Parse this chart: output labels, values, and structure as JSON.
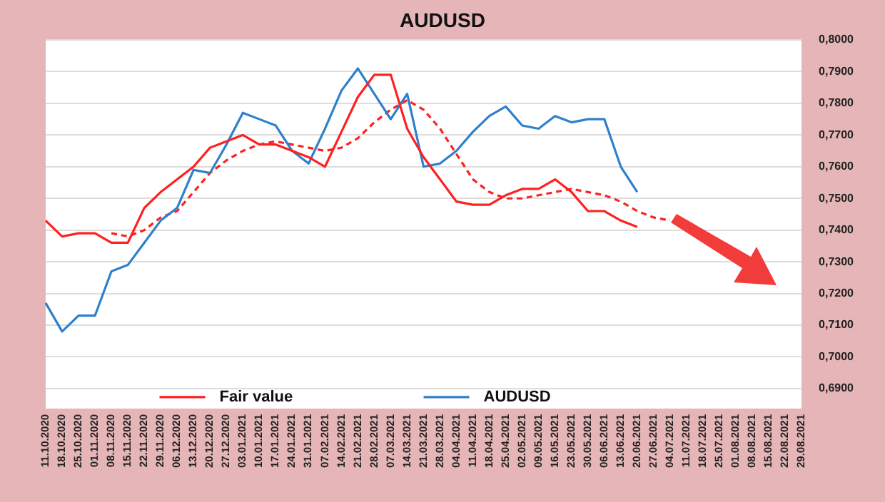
{
  "chart_data": {
    "type": "line",
    "title": "AUDUSD",
    "categories": [
      "11.10.2020",
      "18.10.2020",
      "25.10.2020",
      "01.11.2020",
      "08.11.2020",
      "15.11.2020",
      "22.11.2020",
      "29.11.2020",
      "06.12.2020",
      "13.12.2020",
      "20.12.2020",
      "27.12.2020",
      "03.01.2021",
      "10.01.2021",
      "17.01.2021",
      "24.01.2021",
      "31.01.2021",
      "07.02.2021",
      "14.02.2021",
      "21.02.2021",
      "28.02.2021",
      "07.03.2021",
      "14.03.2021",
      "21.03.2021",
      "28.03.2021",
      "04.04.2021",
      "11.04.2021",
      "18.04.2021",
      "25.04.2021",
      "02.05.2021",
      "09.05.2021",
      "16.05.2021",
      "23.05.2021",
      "30.05.2021",
      "06.06.2021",
      "13.06.2021",
      "20.06.2021",
      "27.06.2021",
      "04.07.2021",
      "11.07.2021",
      "18.07.2021",
      "25.07.2021",
      "01.08.2021",
      "08.08.2021",
      "15.08.2021",
      "22.08.2021",
      "29.08.2021"
    ],
    "series": [
      {
        "name": "Fair value",
        "color": "#ff2020",
        "line_style": "solid",
        "values": [
          0.743,
          0.738,
          0.739,
          0.739,
          0.736,
          0.736,
          0.747,
          0.752,
          0.756,
          0.76,
          0.766,
          0.768,
          0.77,
          0.767,
          0.767,
          0.765,
          0.763,
          0.76,
          0.771,
          0.782,
          0.789,
          0.789,
          0.772,
          0.763,
          0.756,
          0.749,
          0.748,
          0.748,
          0.751,
          0.753,
          0.753,
          0.756,
          0.752,
          0.746,
          0.746,
          0.743,
          0.741,
          null,
          null,
          null,
          null,
          null,
          null,
          null,
          null,
          null,
          null
        ]
      },
      {
        "name": "AUDUSD",
        "color": "#2f80cc",
        "line_style": "solid",
        "values": [
          0.717,
          0.708,
          0.713,
          0.713,
          0.727,
          0.729,
          0.736,
          0.743,
          0.747,
          0.759,
          0.758,
          0.767,
          0.777,
          0.775,
          0.773,
          0.765,
          0.761,
          0.772,
          0.784,
          0.791,
          0.783,
          0.775,
          0.783,
          0.76,
          0.761,
          0.765,
          0.771,
          0.776,
          0.779,
          0.773,
          0.772,
          0.776,
          0.774,
          0.775,
          0.775,
          0.76,
          0.752,
          null,
          null,
          null,
          null,
          null,
          null,
          null,
          null,
          null,
          null
        ]
      },
      {
        "color": "#ff2020",
        "line_style": "dashed",
        "values": [
          null,
          null,
          null,
          null,
          0.739,
          0.738,
          0.74,
          0.744,
          0.746,
          0.752,
          0.758,
          0.762,
          0.765,
          0.767,
          0.768,
          0.767,
          0.766,
          0.765,
          0.766,
          0.769,
          0.774,
          0.778,
          0.781,
          0.778,
          0.772,
          0.764,
          0.756,
          0.752,
          0.75,
          0.75,
          0.751,
          0.752,
          0.753,
          0.752,
          0.751,
          0.749,
          0.746,
          0.744,
          0.743,
          null,
          null,
          null,
          null,
          null,
          null,
          null,
          null
        ]
      }
    ],
    "ylim": [
      0.69,
      0.8
    ],
    "yticks": [
      {
        "value": 0.69,
        "label": "0,6900"
      },
      {
        "value": 0.7,
        "label": "0,7000"
      },
      {
        "value": 0.71,
        "label": "0,7100"
      },
      {
        "value": 0.72,
        "label": "0,7200"
      },
      {
        "value": 0.73,
        "label": "0,7300"
      },
      {
        "value": 0.74,
        "label": "0,7400"
      },
      {
        "value": 0.75,
        "label": "0,7500"
      },
      {
        "value": 0.76,
        "label": "0,7600"
      },
      {
        "value": 0.77,
        "label": "0,7700"
      },
      {
        "value": 0.78,
        "label": "0,7800"
      },
      {
        "value": 0.79,
        "label": "0,7900"
      },
      {
        "value": 0.8,
        "label": "0,8000"
      }
    ],
    "grid": "y",
    "legend": "bottom",
    "marker": "none"
  }
}
